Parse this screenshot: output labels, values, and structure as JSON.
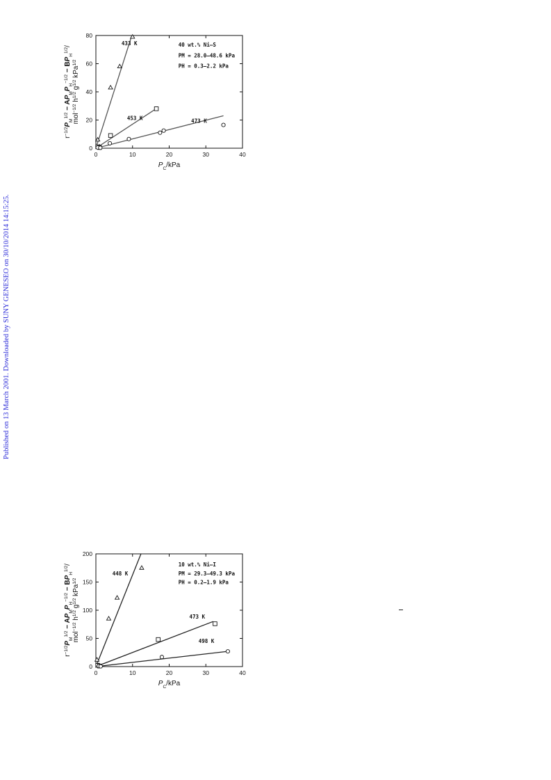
{
  "watermark": "Published on 13 March 2001. Downloaded by SUNY GENESEO on 30/10/2014 14:15:25.",
  "colors": {
    "watermark": "#2b2bd8",
    "axes": "#111111",
    "fit_line_top": "#555555",
    "fit_line_bottom": "#222222"
  },
  "chart_data": [
    {
      "type": "scatter",
      "title": "",
      "annotations": [
        "40 wt.% Ni–S",
        "PM = 28.0–48.6 kPa",
        "PH = 0.3–2.2 kPa"
      ],
      "ylabel": "r−1/2PM1/2 − APMPH−1/2 − BPH1/2/ mol−1/2 h1/2 g1/2 kPa1/2",
      "xlabel": "PC/kPa",
      "xlim": [
        0,
        40
      ],
      "ylim": [
        0,
        80
      ],
      "xticks": [
        "0",
        "10",
        "20",
        "30",
        "40"
      ],
      "yticks": [
        "0",
        "20",
        "40",
        "60",
        "80"
      ],
      "series": [
        {
          "name": "433 K",
          "marker": "triangle",
          "points": [
            [
              0.5,
              6
            ],
            [
              1.0,
              1
            ],
            [
              4,
              43
            ],
            [
              6.5,
              58
            ],
            [
              10,
              79
            ]
          ],
          "fit": [
            [
              0,
              0
            ],
            [
              9.8,
              80
            ]
          ]
        },
        {
          "name": "453 K",
          "marker": "square",
          "points": [
            [
              0.5,
              1
            ],
            [
              1.0,
              0.5
            ],
            [
              4,
              9
            ],
            [
              16.5,
              28
            ]
          ],
          "fit": [
            [
              0,
              0
            ],
            [
              17,
              29
            ]
          ]
        },
        {
          "name": "473 K",
          "marker": "circle",
          "points": [
            [
              0.5,
              0.5
            ],
            [
              1.2,
              0.3
            ],
            [
              3.8,
              3.5
            ],
            [
              9,
              6.5
            ],
            [
              17.5,
              11
            ],
            [
              18.5,
              12.5
            ],
            [
              34.8,
              16.5
            ]
          ],
          "fit": [
            [
              0,
              0
            ],
            [
              34.8,
              23
            ]
          ]
        }
      ]
    },
    {
      "type": "scatter",
      "title": "",
      "annotations": [
        "10 wt.% Ni–I",
        "PM = 29.3–49.3 kPa",
        "PH = 0.2–1.9 kPa"
      ],
      "ylabel": "r−1/2PM1/2 − APMPH−1/2 − BPH1/2/ mol−1/2 h1/2 g1/2 kPa1/2",
      "xlabel": "PC/kPa",
      "xlim": [
        0,
        40
      ],
      "ylim": [
        0,
        200
      ],
      "xticks": [
        "0",
        "10",
        "20",
        "30",
        "40"
      ],
      "yticks": [
        "0",
        "50",
        "100",
        "150",
        "200"
      ],
      "series": [
        {
          "name": "448 K",
          "marker": "triangle",
          "points": [
            [
              0.3,
              12
            ],
            [
              0.8,
              2
            ],
            [
              3.5,
              85
            ],
            [
              5.8,
              122
            ],
            [
              12.5,
              175
            ]
          ],
          "fit": [
            [
              0,
              0
            ],
            [
              12.3,
              200
            ]
          ]
        },
        {
          "name": "473 K",
          "marker": "square",
          "points": [
            [
              0.5,
              2
            ],
            [
              1.0,
              1
            ],
            [
              17,
              48
            ],
            [
              32.5,
              76
            ]
          ],
          "fit": [
            [
              0,
              0
            ],
            [
              32,
              80
            ]
          ]
        },
        {
          "name": "498 K",
          "marker": "circle",
          "points": [
            [
              0.8,
              1
            ],
            [
              1.3,
              0.5
            ],
            [
              18,
              17
            ],
            [
              36,
              27
            ]
          ],
          "fit": [
            [
              0,
              0
            ],
            [
              36,
              27
            ]
          ]
        }
      ]
    }
  ]
}
